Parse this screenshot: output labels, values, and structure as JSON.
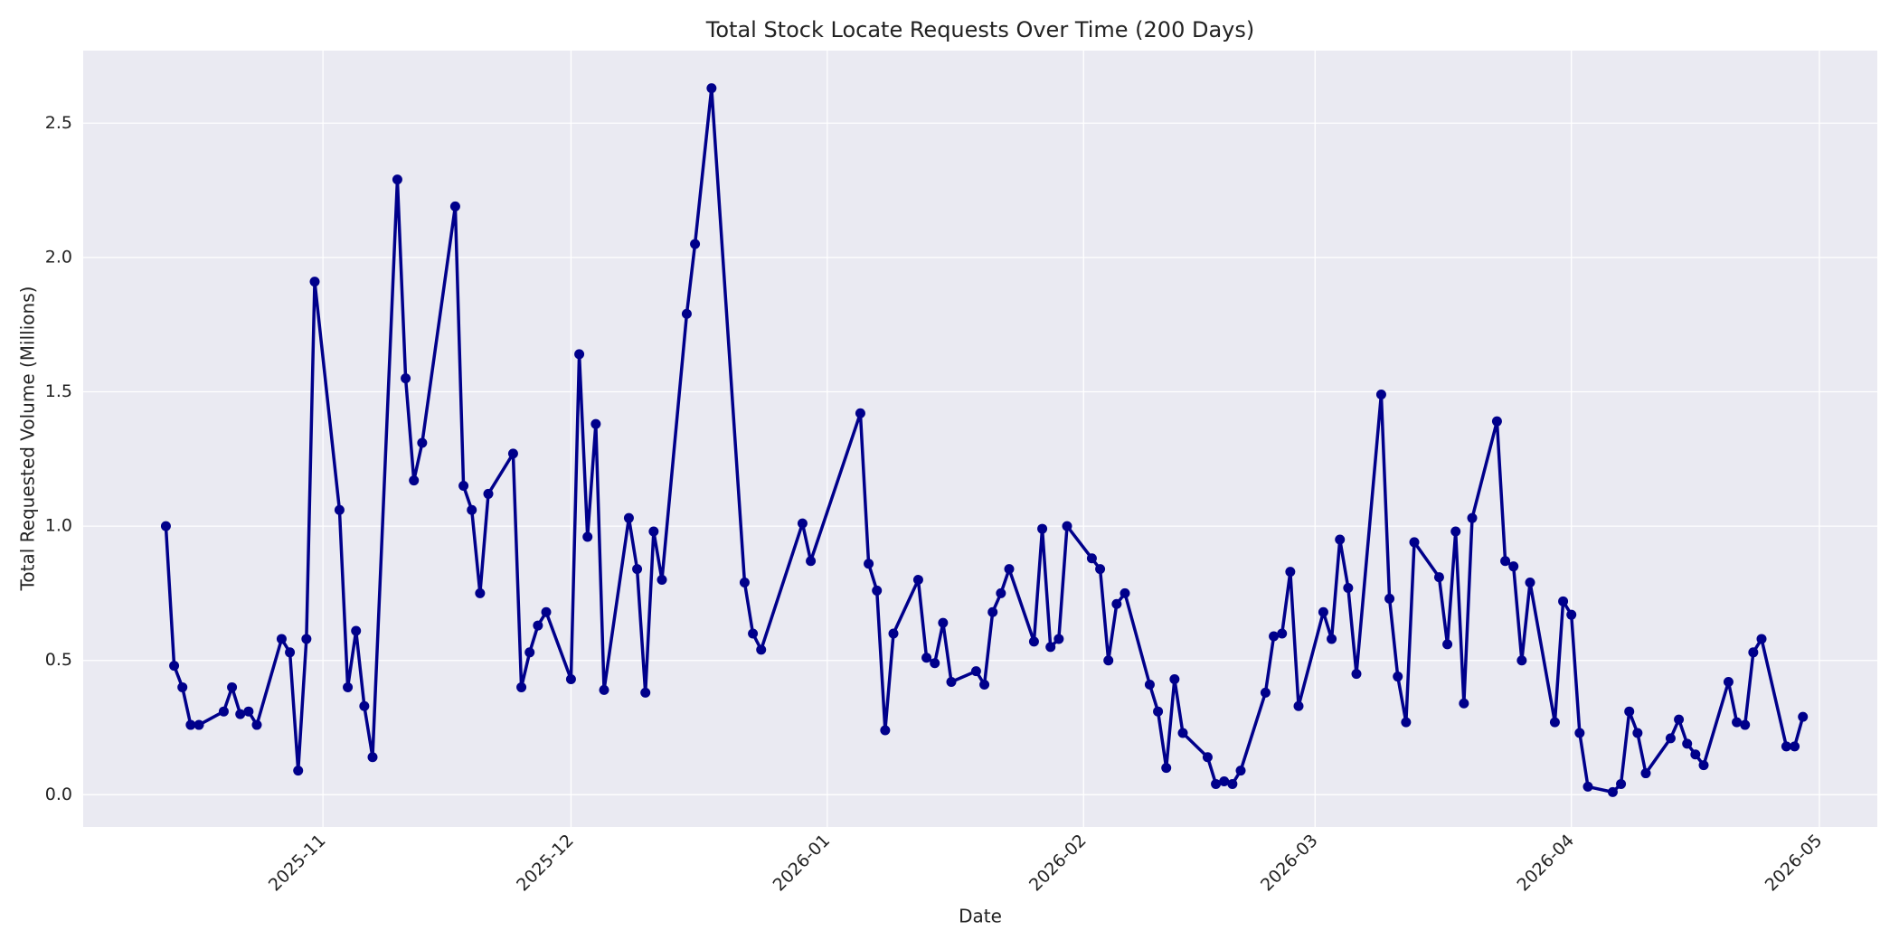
{
  "chart_data": {
    "type": "line",
    "title": "Total Stock Locate Requests Over Time (200 Days)",
    "x_label": "Date",
    "y_label": "Total Requested Volume (Millions)",
    "color": "#00008b",
    "grid": true,
    "x": [
      "2025-10-13",
      "2025-10-14",
      "2025-10-15",
      "2025-10-16",
      "2025-10-17",
      "2025-10-20",
      "2025-10-21",
      "2025-10-22",
      "2025-10-23",
      "2025-10-24",
      "2025-10-27",
      "2025-10-28",
      "2025-10-29",
      "2025-10-30",
      "2025-10-31",
      "2025-11-03",
      "2025-11-04",
      "2025-11-05",
      "2025-11-06",
      "2025-11-07",
      "2025-11-10",
      "2025-11-11",
      "2025-11-12",
      "2025-11-13",
      "2025-11-17",
      "2025-11-18",
      "2025-11-19",
      "2025-11-20",
      "2025-11-21",
      "2025-11-24",
      "2025-11-25",
      "2025-11-26",
      "2025-11-27",
      "2025-11-28",
      "2025-12-01",
      "2025-12-02",
      "2025-12-03",
      "2025-12-04",
      "2025-12-05",
      "2025-12-08",
      "2025-12-09",
      "2025-12-10",
      "2025-12-11",
      "2025-12-12",
      "2025-12-15",
      "2025-12-16",
      "2025-12-18",
      "2025-12-22",
      "2025-12-23",
      "2025-12-24",
      "2025-12-29",
      "2025-12-30",
      "2026-01-05",
      "2026-01-06",
      "2026-01-07",
      "2026-01-08",
      "2026-01-09",
      "2026-01-12",
      "2026-01-13",
      "2026-01-14",
      "2026-01-15",
      "2026-01-16",
      "2026-01-19",
      "2026-01-20",
      "2026-01-21",
      "2026-01-22",
      "2026-01-23",
      "2026-01-26",
      "2026-01-27",
      "2026-01-28",
      "2026-01-29",
      "2026-01-30",
      "2026-02-02",
      "2026-02-03",
      "2026-02-04",
      "2026-02-05",
      "2026-02-06",
      "2026-02-09",
      "2026-02-10",
      "2026-02-11",
      "2026-02-12",
      "2026-02-13",
      "2026-02-16",
      "2026-02-17",
      "2026-02-18",
      "2026-02-19",
      "2026-02-20",
      "2026-02-23",
      "2026-02-24",
      "2026-02-25",
      "2026-02-26",
      "2026-02-27",
      "2026-03-02",
      "2026-03-03",
      "2026-03-04",
      "2026-03-05",
      "2026-03-06",
      "2026-03-09",
      "2026-03-10",
      "2026-03-11",
      "2026-03-12",
      "2026-03-13",
      "2026-03-16",
      "2026-03-17",
      "2026-03-18",
      "2026-03-19",
      "2026-03-20",
      "2026-03-23",
      "2026-03-24",
      "2026-03-25",
      "2026-03-26",
      "2026-03-27",
      "2026-03-30",
      "2026-03-31",
      "2026-04-01",
      "2026-04-02",
      "2026-04-03",
      "2026-04-06",
      "2026-04-07",
      "2026-04-08",
      "2026-04-09",
      "2026-04-10",
      "2026-04-13",
      "2026-04-14",
      "2026-04-15",
      "2026-04-16",
      "2026-04-17",
      "2026-04-20",
      "2026-04-21",
      "2026-04-22",
      "2026-04-23",
      "2026-04-24",
      "2026-04-27",
      "2026-04-28",
      "2026-04-29"
    ],
    "values": [
      1.0,
      0.48,
      0.4,
      0.26,
      0.26,
      0.31,
      0.4,
      0.3,
      0.31,
      0.26,
      0.58,
      0.53,
      0.09,
      0.58,
      1.91,
      1.06,
      0.4,
      0.61,
      0.33,
      0.14,
      2.29,
      1.55,
      1.17,
      1.31,
      2.19,
      1.15,
      1.06,
      0.75,
      1.12,
      1.27,
      0.4,
      0.53,
      0.63,
      0.68,
      0.43,
      1.64,
      0.96,
      1.38,
      0.39,
      1.03,
      0.84,
      0.38,
      0.98,
      0.8,
      1.79,
      2.05,
      2.63,
      0.79,
      0.6,
      0.54,
      1.01,
      0.87,
      1.42,
      0.86,
      0.76,
      0.24,
      0.6,
      0.8,
      0.51,
      0.49,
      0.64,
      0.42,
      0.46,
      0.41,
      0.68,
      0.75,
      0.84,
      0.57,
      0.99,
      0.55,
      0.58,
      1.0,
      0.88,
      0.84,
      0.5,
      0.71,
      0.75,
      0.41,
      0.31,
      0.1,
      0.43,
      0.23,
      0.14,
      0.04,
      0.05,
      0.04,
      0.09,
      0.38,
      0.59,
      0.6,
      0.83,
      0.33,
      0.68,
      0.58,
      0.95,
      0.77,
      0.45,
      1.49,
      0.73,
      0.44,
      0.27,
      0.94,
      0.81,
      0.56,
      0.98,
      0.34,
      1.03,
      1.39,
      0.87,
      0.85,
      0.5,
      0.79,
      0.27,
      0.72,
      0.67,
      0.23,
      0.03,
      0.01,
      0.04,
      0.31,
      0.23,
      0.08,
      0.21,
      0.28,
      0.19,
      0.15,
      0.11,
      0.42,
      0.27,
      0.26,
      0.53,
      0.58,
      0.18,
      0.18,
      0.29
    ],
    "xlim": [
      "2025-10-03",
      "2026-05-08"
    ],
    "xticks": [
      {
        "value": "2025-11-01",
        "label": "2025-11"
      },
      {
        "value": "2025-12-01",
        "label": "2025-12"
      },
      {
        "value": "2026-01-01",
        "label": "2026-01"
      },
      {
        "value": "2026-02-01",
        "label": "2026-02"
      },
      {
        "value": "2026-03-01",
        "label": "2026-03"
      },
      {
        "value": "2026-04-01",
        "label": "2026-04"
      },
      {
        "value": "2026-05-01",
        "label": "2026-05"
      }
    ],
    "ylim": [
      -0.12,
      2.77
    ],
    "yticks": [
      {
        "value": 0,
        "label": "0.0"
      },
      0.5,
      {
        "value": 1,
        "label": "1.0"
      },
      1.5,
      {
        "value": 2,
        "label": "2.0"
      },
      2.5
    ]
  }
}
